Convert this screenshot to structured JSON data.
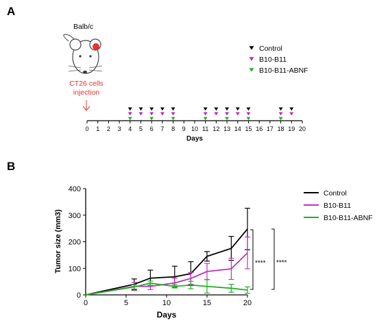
{
  "panels": {
    "a": "A",
    "b": "B"
  },
  "mouse": {
    "strain": "Balb/c"
  },
  "injection": {
    "line1": "CT26 cells",
    "line2": "injection"
  },
  "timeline": {
    "xlabel": "Days",
    "ticks": [
      0,
      1,
      2,
      3,
      4,
      5,
      6,
      7,
      8,
      9,
      10,
      11,
      12,
      13,
      14,
      15,
      16,
      17,
      18,
      19,
      20
    ],
    "groups": [
      {
        "name": "Control",
        "color": "#000000",
        "days": [
          4,
          5,
          6,
          7,
          8,
          11,
          12,
          13,
          14,
          15,
          18,
          19
        ]
      },
      {
        "name": "B10-B11",
        "color": "#c020c0",
        "days": [
          4,
          5,
          6,
          7,
          8,
          11,
          12,
          13,
          14,
          15,
          18,
          19
        ]
      },
      {
        "name": "B10-B11-ABNF",
        "color": "#20b020",
        "days": [
          4,
          6,
          8,
          11,
          13,
          15,
          18
        ]
      }
    ]
  },
  "chart_data": {
    "type": "line",
    "xlabel": "Days",
    "ylabel": "Tumor size (mm3)",
    "xlim": [
      0,
      20
    ],
    "ylim": [
      0,
      400
    ],
    "xticks": [
      0,
      5,
      10,
      15,
      20
    ],
    "yticks": [
      0,
      100,
      200,
      300,
      400
    ],
    "legend_position": "top-right",
    "series": [
      {
        "name": "Control",
        "color": "#000000",
        "x": [
          0,
          6,
          8,
          11,
          13,
          15,
          18,
          20
        ],
        "y": [
          0,
          40,
          63,
          68,
          80,
          145,
          175,
          248
        ],
        "err": [
          0,
          20,
          30,
          40,
          45,
          18,
          45,
          78
        ]
      },
      {
        "name": "B10-B11",
        "color": "#c030c0",
        "x": [
          0,
          6,
          8,
          11,
          13,
          15,
          18,
          20
        ],
        "y": [
          0,
          32,
          32,
          45,
          62,
          88,
          98,
          158
        ],
        "err": [
          0,
          15,
          12,
          18,
          22,
          30,
          40,
          60
        ]
      },
      {
        "name": "B10-B11-ABNF",
        "color": "#20b020",
        "x": [
          0,
          6,
          8,
          11,
          13,
          15,
          18,
          20
        ],
        "y": [
          0,
          30,
          44,
          32,
          37,
          32,
          25,
          18
        ],
        "err": [
          0,
          8,
          8,
          6,
          14,
          25,
          15,
          12
        ]
      }
    ],
    "significance": [
      {
        "label": "****",
        "from": "B10-B11",
        "to": "B10-B11-ABNF"
      },
      {
        "label": "****",
        "from": "Control",
        "to": "B10-B11-ABNF"
      }
    ]
  }
}
